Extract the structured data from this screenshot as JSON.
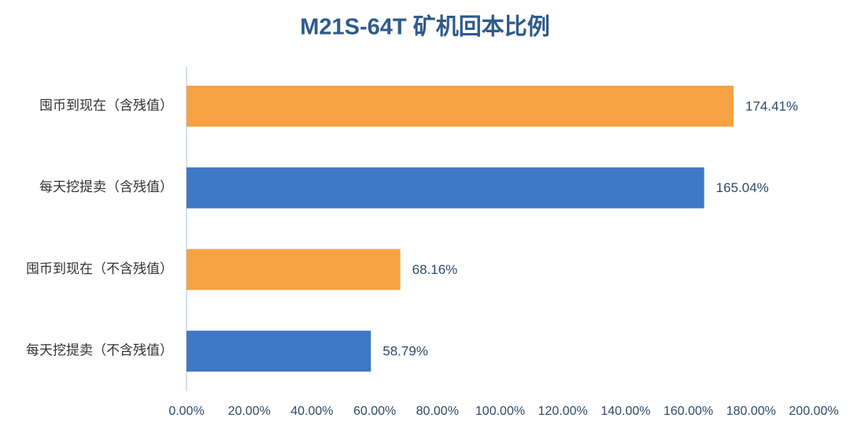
{
  "chart_data": {
    "type": "bar",
    "orientation": "horizontal",
    "title": "M21S-64T 矿机回本比例",
    "categories": [
      "囤币到现在（含残值）",
      "每天挖提卖（含残值）",
      "囤币到现在（不含残值）",
      "每天挖提卖（不含残值）"
    ],
    "values": [
      174.41,
      165.04,
      68.16,
      58.79
    ],
    "value_labels": [
      "174.41%",
      "165.04%",
      "68.16%",
      "58.79%"
    ],
    "colors": [
      "#f6a142",
      "#3f78c6",
      "#f6a142",
      "#3f78c6"
    ],
    "xlim": [
      0,
      200
    ],
    "xticks": [
      {
        "value": 0,
        "label": "0.00%"
      },
      {
        "value": 20,
        "label": "20.00%"
      },
      {
        "value": 40,
        "label": "40.00%"
      },
      {
        "value": 60,
        "label": "60.00%"
      },
      {
        "value": 80,
        "label": "80.00%"
      },
      {
        "value": 100,
        "label": "100.00%"
      },
      {
        "value": 120,
        "label": "120.00%"
      },
      {
        "value": 140,
        "label": "140.00%"
      },
      {
        "value": 160,
        "label": "160.00%"
      },
      {
        "value": 180,
        "label": "180.00%"
      },
      {
        "value": 200,
        "label": "200.00%"
      }
    ],
    "grid": false
  }
}
